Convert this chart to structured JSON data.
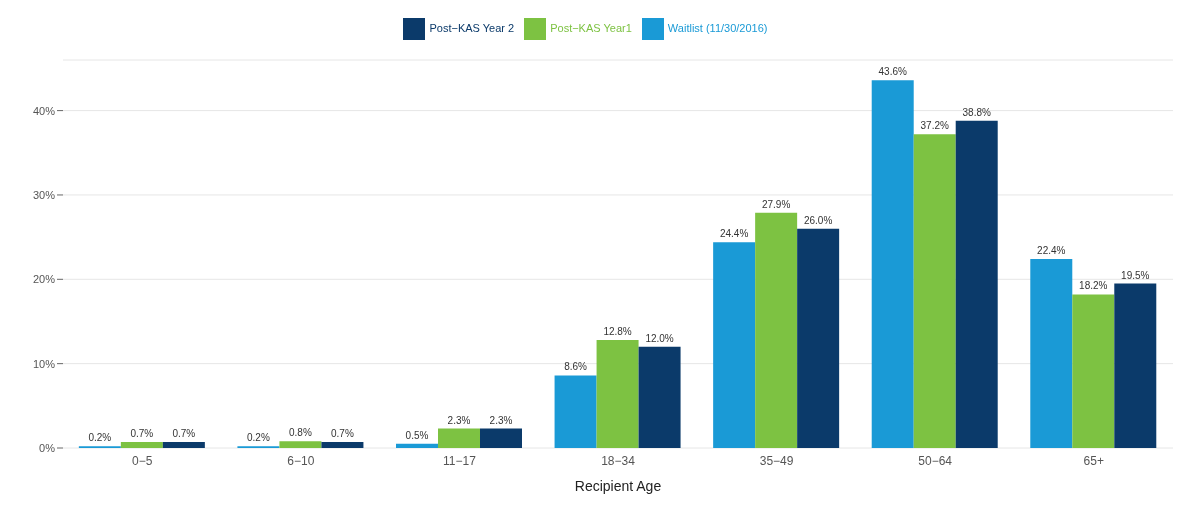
{
  "chart_data": {
    "type": "bar",
    "xlabel": "Recipient Age",
    "categories": [
      "0−5",
      "6−10",
      "11−17",
      "18−34",
      "35−49",
      "50−64",
      "65+"
    ],
    "series": [
      {
        "name": "Waitlist (11/30/2016)",
        "color": "#1a9ad6",
        "values": [
          0.2,
          0.2,
          0.5,
          8.6,
          24.4,
          43.6,
          22.4
        ],
        "value_labels": [
          "0.2%",
          "0.2%",
          "0.5%",
          "8.6%",
          "24.4%",
          "43.6%",
          "22.4%"
        ]
      },
      {
        "name": "Post−KAS Year1",
        "color": "#7dc242",
        "values": [
          0.7,
          0.8,
          2.3,
          12.8,
          27.9,
          37.2,
          18.2
        ],
        "value_labels": [
          "0.7%",
          "0.8%",
          "2.3%",
          "12.8%",
          "27.9%",
          "37.2%",
          "18.2%"
        ]
      },
      {
        "name": "Post−KAS Year 2",
        "color": "#0b3a6a",
        "values": [
          0.7,
          0.7,
          2.3,
          12.0,
          26.0,
          38.8,
          19.5
        ],
        "value_labels": [
          "0.7%",
          "0.7%",
          "2.3%",
          "12.0%",
          "26.0%",
          "38.8%",
          "19.5%"
        ]
      }
    ],
    "ylim": [
      0,
      46
    ],
    "yticks": [
      {
        "value": 0,
        "label": "0%"
      },
      {
        "value": 10,
        "label": "10%"
      },
      {
        "value": 20,
        "label": "20%"
      },
      {
        "value": 30,
        "label": "30%"
      },
      {
        "value": 40,
        "label": "40%"
      }
    ],
    "grid": "y",
    "legend": "top"
  }
}
